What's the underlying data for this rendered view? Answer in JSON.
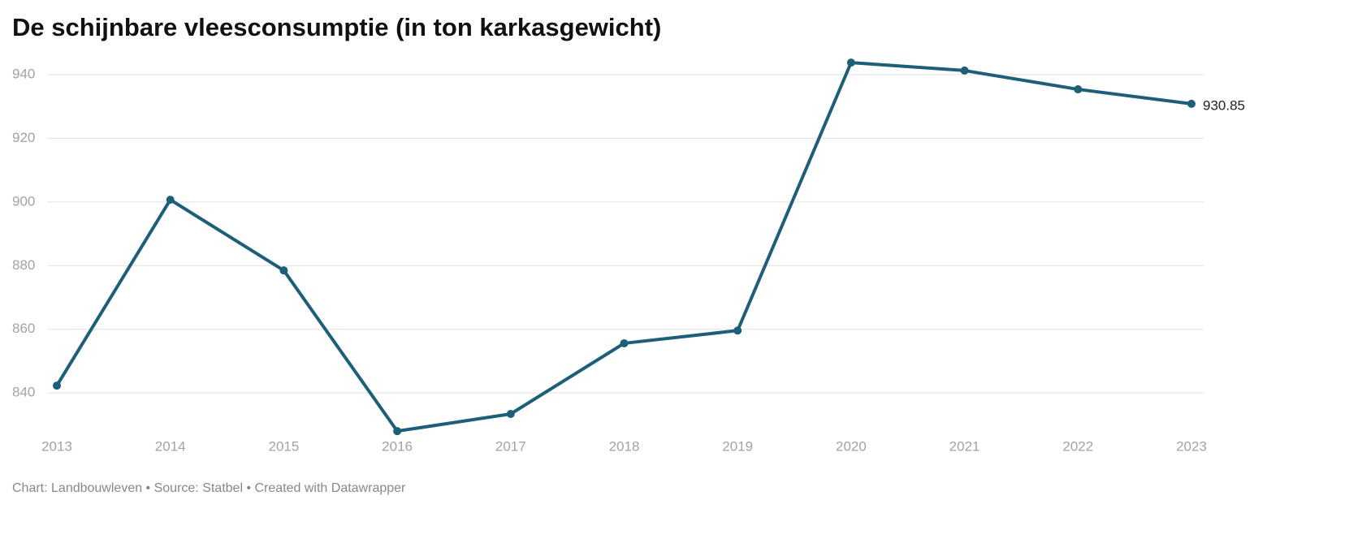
{
  "chart_data": {
    "type": "line",
    "title": "De schijnbare vleesconsumptie (in ton karkasgewicht)",
    "footer": "Chart: Landbouwleven • Source: Statbel • Created with Datawrapper",
    "categories": [
      "2013",
      "2014",
      "2015",
      "2016",
      "2017",
      "2018",
      "2019",
      "2020",
      "2021",
      "2022",
      "2023"
    ],
    "values": [
      842.3,
      900.7,
      878.5,
      828.0,
      833.4,
      855.6,
      859.6,
      943.8,
      941.3,
      935.4,
      930.85
    ],
    "color": "#1d5e78",
    "ylim": [
      826,
      946
    ],
    "yticks": [
      840,
      860,
      880,
      900,
      920,
      940
    ],
    "grid": true
  }
}
